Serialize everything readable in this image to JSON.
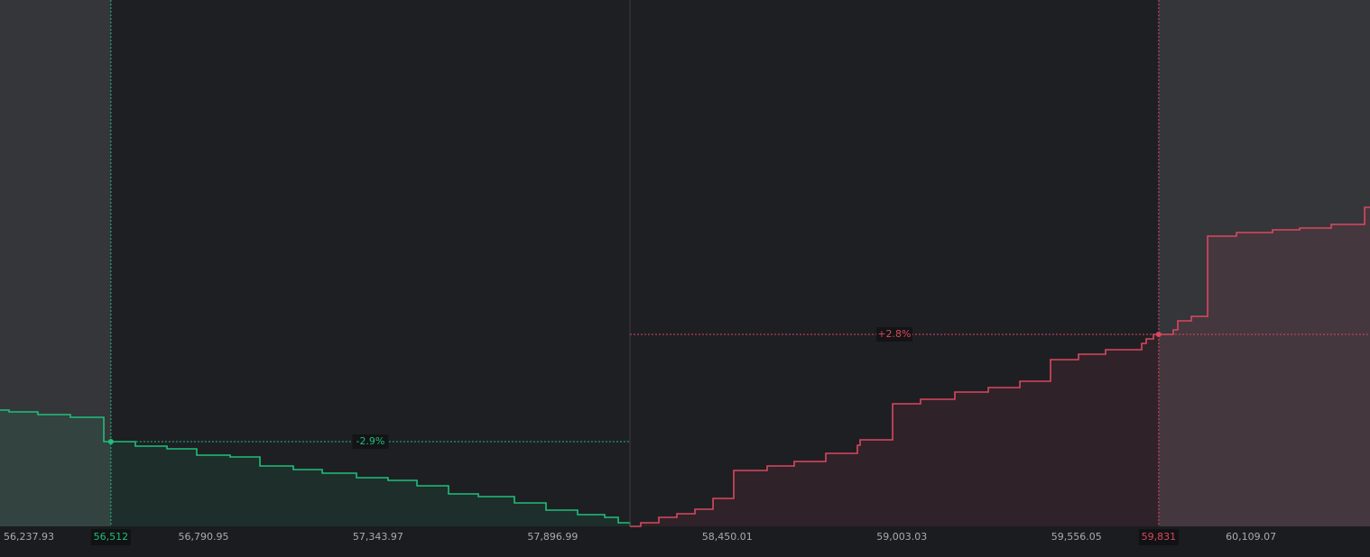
{
  "chart_data": {
    "type": "depth",
    "step": true,
    "xlim": [
      56160.7,
      60500.3
    ],
    "ylim": [
      0,
      584
    ],
    "xticks": [
      {
        "value": 56237.93,
        "label": "56,237.93"
      },
      {
        "value": 56790.95,
        "label": "56,790.95"
      },
      {
        "value": 57343.97,
        "label": "57,343.97"
      },
      {
        "value": 57896.99,
        "label": "57,896.99"
      },
      {
        "value": 58450.01,
        "label": "58,450.01"
      },
      {
        "value": 59003.03,
        "label": "59,003.03"
      },
      {
        "value": 59556.05,
        "label": "59,556.05"
      },
      {
        "value": 60109.07,
        "label": "60,109.07"
      }
    ],
    "range_markers": [
      {
        "x": {
          "value": 56512,
          "label": "56,512"
        },
        "y": 94,
        "label": "-2.9%",
        "color": "#1fbf7a"
      },
      {
        "x": {
          "value": 59831,
          "label": "59,831"
        },
        "y": 213,
        "label": "+2.8%",
        "color": "#d9485f"
      }
    ],
    "series": [
      {
        "color": "#1fbf7a",
        "x": [
          56160.7,
          56189.3,
          56280.8,
          56383.7,
          56489.5,
          56589.5,
          56689.6,
          56783.9,
          56889.7,
          56984.0,
          57089.8,
          57181.3,
          57289.9,
          57389.8,
          57481.5,
          57581.5,
          57675.9,
          57790.2,
          57890.3,
          57990.3,
          58076.1,
          58119.0,
          58156.1
        ],
        "values": [
          129,
          127,
          124,
          121,
          94,
          89,
          86,
          79,
          77,
          67,
          63,
          59,
          54,
          51,
          45,
          36,
          33,
          26,
          18,
          13,
          10,
          4,
          0
        ]
      },
      {
        "color": "#d9485f",
        "x": [
          58156.1,
          58190.4,
          58247.6,
          58304.8,
          58362.0,
          58419.2,
          58484.9,
          58590.7,
          58676.5,
          58776.5,
          58876.6,
          58885.2,
          58988.1,
          59076.7,
          59185.3,
          59291.1,
          59391.2,
          59488.4,
          59577.0,
          59662.8,
          59777.1,
          59791.4,
          59814.3,
          59877.2,
          59891.5,
          59934.4,
          59985.9,
          60077.4,
          60191.7,
          60277.5,
          60377.5,
          60483.3,
          60500.3
        ],
        "values": [
          0,
          4,
          10,
          14,
          19,
          31,
          62,
          67,
          72,
          81,
          90,
          96,
          136,
          141,
          149,
          154,
          161,
          185,
          191,
          196,
          203,
          208,
          213,
          218,
          228,
          233,
          322,
          326,
          329,
          331,
          335,
          354,
          354
        ]
      }
    ]
  }
}
